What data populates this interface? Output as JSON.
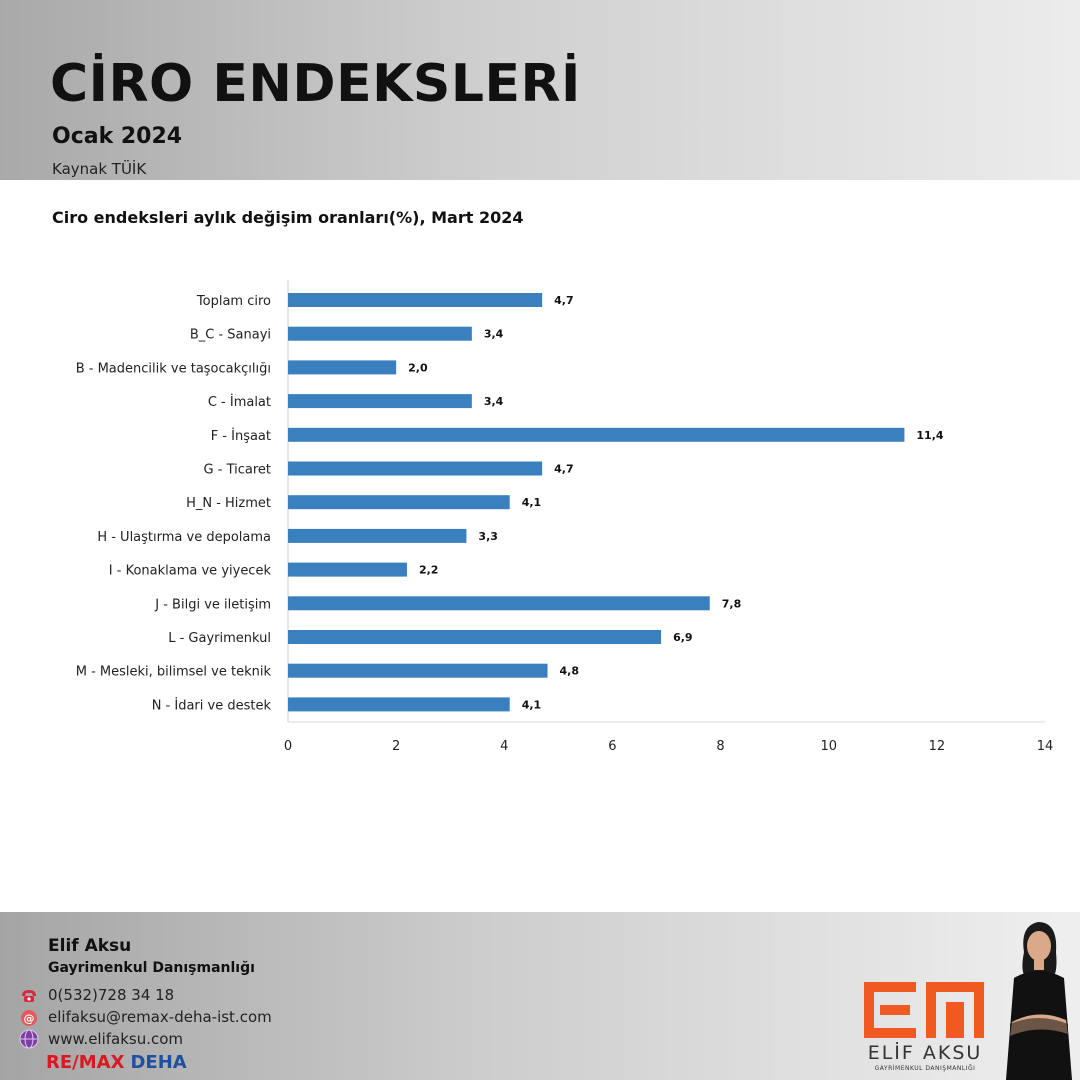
{
  "header": {
    "title": "CİRO ENDEKSLERİ",
    "subtitle": "Ocak 2024",
    "source": "Kaynak TÜİK"
  },
  "chart_data": {
    "type": "bar",
    "orientation": "horizontal",
    "title": "Ciro endeksleri aylık değişim oranları(%), Mart 2024",
    "categories": [
      "Toplam ciro",
      "B_C - Sanayi",
      "B - Madencilik ve taşocakçılığı",
      "C - İmalat",
      "F - İnşaat",
      "G - Ticaret",
      "H_N - Hizmet",
      "H - Ulaştırma ve depolama",
      "I - Konaklama ve yiyecek",
      "J - Bilgi ve iletişim",
      "L - Gayrimenkul",
      "M - Mesleki, bilimsel ve teknik",
      "N - İdari ve destek"
    ],
    "values": [
      4.7,
      3.4,
      2.0,
      3.4,
      11.4,
      4.7,
      4.1,
      3.3,
      2.2,
      7.8,
      6.9,
      4.8,
      4.1
    ],
    "value_labels": [
      "4,7",
      "3,4",
      "2,0",
      "3,4",
      "11,4",
      "4,7",
      "4,1",
      "3,3",
      "2,2",
      "7,8",
      "6,9",
      "4,8",
      "4,1"
    ],
    "xlim": [
      0,
      14
    ],
    "xticks": [
      0,
      2,
      4,
      6,
      8,
      10,
      12,
      14
    ],
    "bar_color": "#3a7fbe",
    "grid": false
  },
  "footer": {
    "name": "Elif Aksu",
    "role": "Gayrimenkul Danışmanlığı",
    "phone": "0(532)728 34 18",
    "email": "elifaksu@remax-deha-ist.com",
    "website": "www.elifaksu.com",
    "brand_re": "RE/MAX",
    "brand_deha": "DEHA",
    "logo_name": "ELİF AKSU",
    "logo_sub": "GAYRİMENKUL DANIŞMANLIĞI",
    "logo_color": "#f05a22",
    "phone_icon": "phone-icon",
    "email_icon": "email-icon",
    "web_icon": "globe-icon"
  }
}
